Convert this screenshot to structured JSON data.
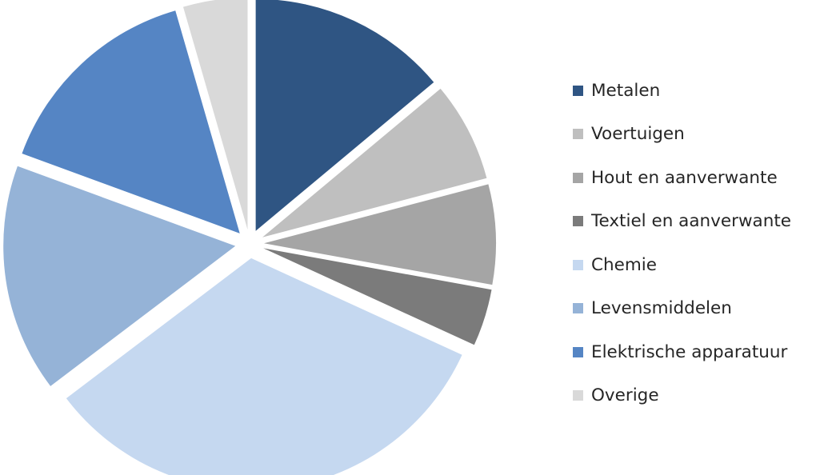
{
  "chart_data": {
    "type": "pie",
    "title": "",
    "start_angle_deg": 0,
    "direction": "clockwise",
    "exploded": true,
    "legend_position": "right",
    "series": [
      {
        "labels": [
          "Metalen",
          "Voertuigen",
          "Hout en aanverwante",
          "Textiel en aanverwante",
          "Chemie",
          "Levensmiddelen",
          "Elektrische apparatuur",
          "Overige"
        ],
        "values": [
          14,
          7,
          7,
          4,
          33,
          16,
          15,
          4.5
        ],
        "colors": [
          "#2f5583",
          "#bfbfbf",
          "#a5a5a5",
          "#7b7b7b",
          "#c5d8f0",
          "#95b3d7",
          "#5585c4",
          "#d9d9d9"
        ]
      }
    ]
  }
}
